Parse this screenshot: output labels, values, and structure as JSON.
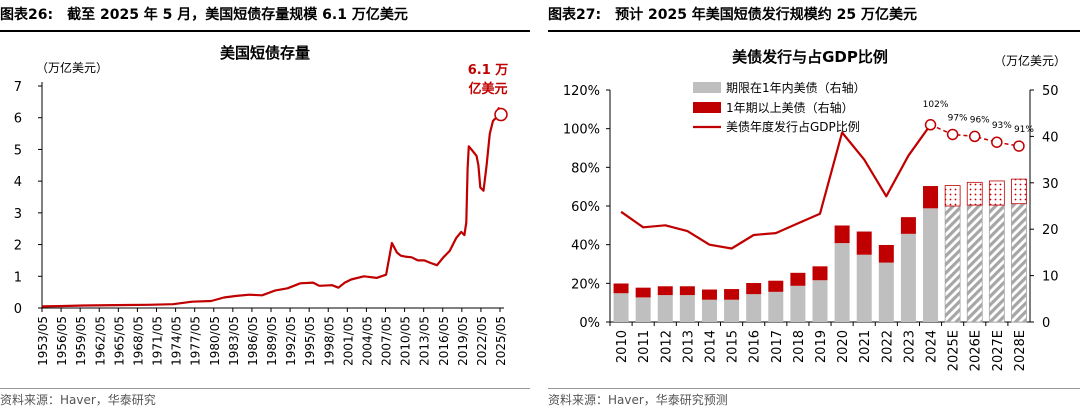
{
  "left": {
    "header_num": "图表26:",
    "header_title": "截至 2025 年 5 月，美国短债存量规模 6.1 万亿美元",
    "source": "资料来源：Haver，华泰研究",
    "chart_data": {
      "type": "line",
      "title": "美国短债存量",
      "ylabel": "（万亿美元）",
      "ylim": [
        0,
        7
      ],
      "yticks": [
        "0",
        "1",
        "2",
        "3",
        "4",
        "5",
        "6",
        "7"
      ],
      "xtick_labels": [
        "1953/05",
        "1956/05",
        "1959/05",
        "1962/05",
        "1965/05",
        "1968/05",
        "1971/05",
        "1974/05",
        "1977/05",
        "1980/05",
        "1983/05",
        "1986/05",
        "1989/05",
        "1992/05",
        "1995/05",
        "1998/05",
        "2001/05",
        "2004/05",
        "2007/05",
        "2010/05",
        "2013/05",
        "2016/05",
        "2019/05",
        "2022/05",
        "2025/05"
      ],
      "annotation": {
        "line1": "6.1 万",
        "line2": "亿美元",
        "x": 2025.4,
        "y": 6.1
      },
      "color": "#C00000",
      "series": [
        {
          "x": [
            1953.4,
            1956,
            1960,
            1965,
            1970,
            1974,
            1977,
            1980,
            1982,
            1984,
            1986,
            1988,
            1990,
            1992,
            1994,
            1996,
            1997,
            1999,
            2000,
            2001,
            2002,
            2004,
            2006,
            2007.5,
            2008,
            2008.4,
            2008.8,
            2009.2,
            2009.8,
            2010.5,
            2011.5,
            2012.5,
            2013.5,
            2014.5,
            2015.5,
            2016.5,
            2017.5,
            2018.5,
            2019.3,
            2019.8,
            2020.1,
            2020.3,
            2020.5,
            2020.9,
            2021.3,
            2021.7,
            2022.0,
            2022.3,
            2022.8,
            2023.3,
            2023.8,
            2024.3,
            2024.8,
            2025.2,
            2025.4
          ],
          "y": [
            0.05,
            0.06,
            0.08,
            0.09,
            0.1,
            0.12,
            0.2,
            0.22,
            0.33,
            0.38,
            0.42,
            0.4,
            0.55,
            0.62,
            0.78,
            0.8,
            0.7,
            0.72,
            0.64,
            0.8,
            0.9,
            1.0,
            0.95,
            1.05,
            1.6,
            2.05,
            1.9,
            1.75,
            1.65,
            1.62,
            1.6,
            1.5,
            1.5,
            1.42,
            1.35,
            1.6,
            1.8,
            2.2,
            2.4,
            2.3,
            2.7,
            4.4,
            5.1,
            5.0,
            4.9,
            4.8,
            4.5,
            3.8,
            3.7,
            4.5,
            5.5,
            5.9,
            6.0,
            6.3,
            6.1
          ]
        }
      ]
    }
  },
  "right": {
    "header_num": "图表27:",
    "header_title": "预计 2025 年美国短债发行规模约 25 万亿美元",
    "source": "资料来源：Haver，华泰研究预测",
    "chart_data": {
      "type": "bar",
      "title": "美债发行与占GDP比例",
      "y2label": "（万亿美元）",
      "categories": [
        "2010",
        "2011",
        "2012",
        "2013",
        "2014",
        "2015",
        "2016",
        "2017",
        "2018",
        "2019",
        "2020",
        "2021",
        "2022",
        "2023",
        "2024",
        "2025E",
        "2026E",
        "2027E",
        "2028E"
      ],
      "ylim_left": [
        0,
        120
      ],
      "yticks_left": [
        "0%",
        "20%",
        "40%",
        "60%",
        "80%",
        "100%",
        "120%"
      ],
      "ylim_right": [
        0,
        50
      ],
      "yticks_right": [
        "0",
        "10",
        "20",
        "30",
        "40",
        "50"
      ],
      "legend": [
        "期限在1年内美债（右轴）",
        "1年期以上美债（右轴）",
        "美债年度发行占GDP比例"
      ],
      "colors": {
        "short": "#BFBFBF",
        "long": "#C00000",
        "line": "#C00000"
      },
      "series": [
        {
          "name": "期限在1年内美债（右轴）",
          "axis": "right",
          "values": [
            6.2,
            5.3,
            5.8,
            5.8,
            4.8,
            4.8,
            6.0,
            6.5,
            7.8,
            9.0,
            17.0,
            14.5,
            12.8,
            19.0,
            24.5,
            25.0,
            25.2,
            25.2,
            25.5
          ]
        },
        {
          "name": "1年期以上美债（右轴）",
          "axis": "right",
          "values": [
            2.1,
            2.1,
            1.9,
            1.9,
            2.2,
            2.3,
            2.4,
            2.4,
            2.8,
            3.0,
            3.8,
            5.0,
            3.8,
            3.6,
            4.8,
            4.4,
            4.9,
            5.2,
            5.3
          ]
        },
        {
          "name": "美债年度发行占GDP比例",
          "axis": "left",
          "values": [
            57,
            49,
            50,
            47,
            40,
            38,
            45,
            46,
            51,
            56,
            98,
            84,
            65,
            86,
            102,
            97,
            96,
            93,
            91
          ]
        }
      ],
      "forecast_from_index": 15,
      "line_labels": [
        {
          "index": 14,
          "text": "102%"
        },
        {
          "index": 15,
          "text": "97%"
        },
        {
          "index": 16,
          "text": "96%"
        },
        {
          "index": 17,
          "text": "93%"
        },
        {
          "index": 18,
          "text": "91%"
        }
      ]
    }
  }
}
